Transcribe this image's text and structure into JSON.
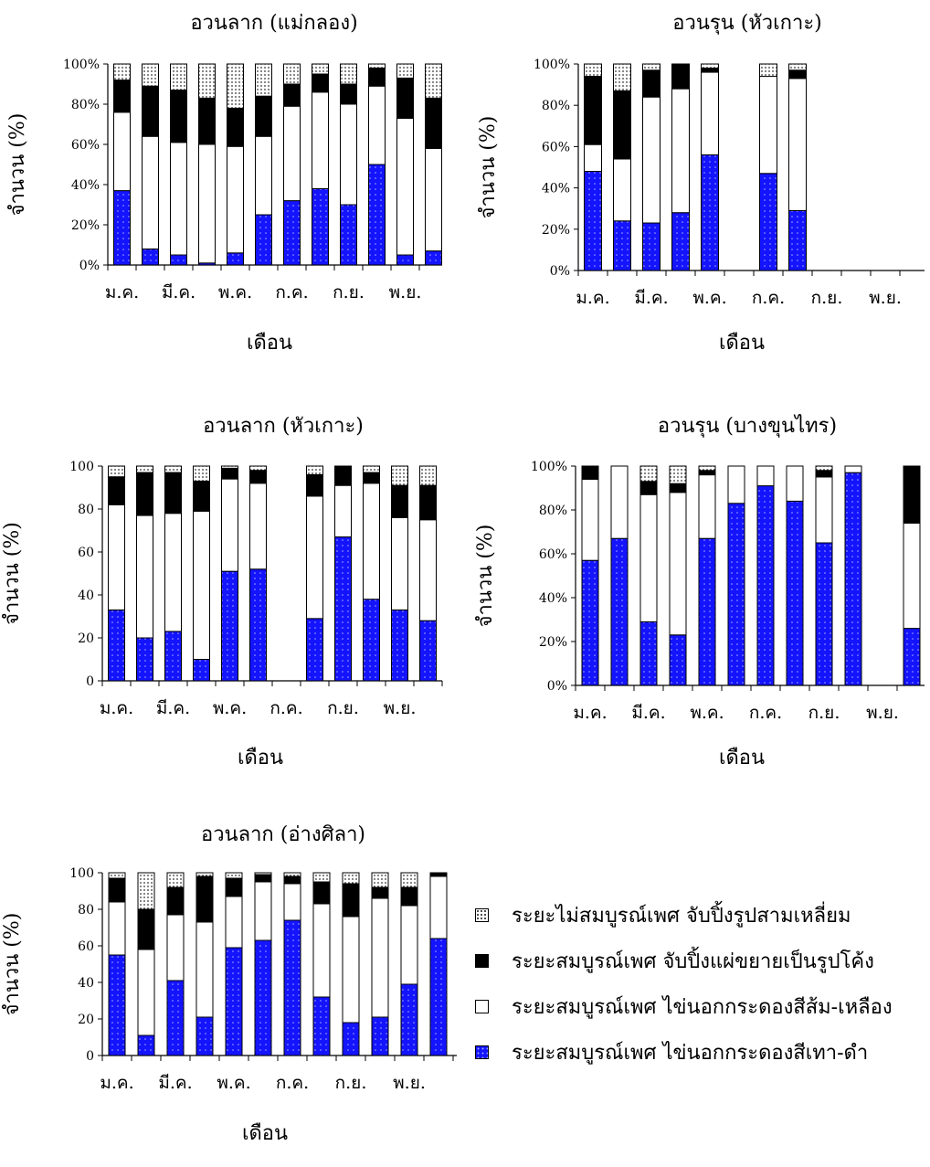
{
  "legend": {
    "items": [
      {
        "key": "immature",
        "label": "ระยะไม่สมบูรณ์เพศ จับปิ้งรูปสามเหลี่ยม"
      },
      {
        "key": "curved",
        "label": "ระยะสมบูรณ์เพศ จับปิ้งแผ่ขยายเป็นรูปโค้ง"
      },
      {
        "key": "orange",
        "label": "ระยะสมบูรณ์เพศ ไข่นอกกระดองสีส้ม-เหลือง"
      },
      {
        "key": "grayblack",
        "label": "ระยะสมบูรณ์เพศ ไข่นอกกระดองสีเทา-ดำ"
      }
    ]
  },
  "colors": {
    "grayblack": "#1414ff",
    "orange": "#ffffff",
    "curved": "#000000",
    "immature": "dotted"
  },
  "chart_data": [
    {
      "type": "bar",
      "stacked": true,
      "id": "chart1",
      "title": "อวนลาก (แม่กลอง)",
      "xlabel": "เดือน",
      "ylabel": "จำนวน (%)",
      "ylim": [
        0,
        100
      ],
      "percent_ticks": true,
      "yticks": [
        "0%",
        "20%",
        "40%",
        "60%",
        "80%",
        "100%"
      ],
      "xticks": [
        "ม.ค.",
        "มี.ค.",
        "พ.ค.",
        "ก.ค.",
        "ก.ย.",
        "พ.ย."
      ],
      "categories": [
        "ม.ค.",
        "ก.พ.",
        "มี.ค.",
        "เม.ย.",
        "พ.ค.",
        "มิ.ย.",
        "ก.ค.",
        "ส.ค.",
        "ก.ย.",
        "ต.ค.",
        "พ.ย.",
        "ธ.ค."
      ],
      "series": [
        {
          "key": "grayblack",
          "values": [
            37,
            8,
            5,
            1,
            6,
            25,
            32,
            38,
            30,
            50,
            5,
            7
          ]
        },
        {
          "key": "orange",
          "values": [
            39,
            56,
            56,
            59,
            53,
            39,
            47,
            48,
            50,
            39,
            68,
            51
          ]
        },
        {
          "key": "curved",
          "values": [
            16,
            25,
            26,
            23,
            19,
            20,
            11,
            9,
            10,
            9,
            20,
            25
          ]
        },
        {
          "key": "immature",
          "values": [
            8,
            11,
            13,
            17,
            22,
            16,
            10,
            5,
            10,
            2,
            7,
            17
          ]
        }
      ]
    },
    {
      "type": "bar",
      "stacked": true,
      "id": "chart2",
      "title": "อวนรุน (หัวเกาะ)",
      "xlabel": "เดือน",
      "ylabel": "จำนวน (%)",
      "ylim": [
        0,
        100
      ],
      "percent_ticks": true,
      "yticks": [
        "0%",
        "20%",
        "40%",
        "60%",
        "80%",
        "100%"
      ],
      "xticks": [
        "ม.ค.",
        "มี.ค.",
        "พ.ค.",
        "ก.ค.",
        "ก.ย.",
        "พ.ย."
      ],
      "categories": [
        "ม.ค.",
        "ก.พ.",
        "มี.ค.",
        "เม.ย.",
        "พ.ค.",
        "มิ.ย.",
        "ก.ค.",
        "ส.ค.",
        "ก.ย.",
        "ต.ค.",
        "พ.ย.",
        "ธ.ค."
      ],
      "series": [
        {
          "key": "grayblack",
          "values": [
            48,
            24,
            23,
            28,
            56,
            null,
            47,
            29,
            null,
            null,
            null,
            null
          ]
        },
        {
          "key": "orange",
          "values": [
            13,
            30,
            61,
            60,
            40,
            null,
            47,
            64,
            null,
            null,
            null,
            null
          ]
        },
        {
          "key": "curved",
          "values": [
            33,
            33,
            13,
            12,
            2,
            null,
            0,
            4,
            null,
            null,
            null,
            null
          ]
        },
        {
          "key": "immature",
          "values": [
            6,
            13,
            3,
            0,
            2,
            null,
            6,
            3,
            null,
            null,
            null,
            null
          ]
        }
      ]
    },
    {
      "type": "bar",
      "stacked": true,
      "id": "chart3",
      "title": "อวนลาก (หัวเกาะ)",
      "xlabel": "เดือน",
      "ylabel": "จำนวน (%)",
      "ylim": [
        0,
        100
      ],
      "percent_ticks": false,
      "yticks": [
        "0",
        "20",
        "40",
        "60",
        "80",
        "100"
      ],
      "xticks": [
        "ม.ค.",
        "มี.ค.",
        "พ.ค.",
        "ก.ค.",
        "ก.ย.",
        "พ.ย."
      ],
      "categories": [
        "ม.ค.",
        "ก.พ.",
        "มี.ค.",
        "เม.ย.",
        "พ.ค.",
        "มิ.ย.",
        "ก.ค.",
        "ส.ค.",
        "ก.ย.",
        "ต.ค.",
        "พ.ย.",
        "ธ.ค."
      ],
      "series": [
        {
          "key": "grayblack",
          "values": [
            33,
            20,
            23,
            10,
            51,
            52,
            null,
            29,
            67,
            38,
            33,
            28
          ]
        },
        {
          "key": "orange",
          "values": [
            49,
            57,
            55,
            69,
            43,
            40,
            null,
            57,
            24,
            54,
            43,
            47
          ]
        },
        {
          "key": "curved",
          "values": [
            13,
            20,
            19,
            14,
            5,
            6,
            null,
            10,
            9,
            5,
            15,
            16
          ]
        },
        {
          "key": "immature",
          "values": [
            5,
            3,
            3,
            7,
            1,
            2,
            null,
            4,
            0,
            3,
            9,
            9
          ]
        }
      ]
    },
    {
      "type": "bar",
      "stacked": true,
      "id": "chart4",
      "title": "อวนรุน (บางขุนไทร)",
      "xlabel": "เดือน",
      "ylabel": "จำนวน (%)",
      "ylim": [
        0,
        100
      ],
      "percent_ticks": true,
      "yticks": [
        "0%",
        "20%",
        "40%",
        "60%",
        "80%",
        "100%"
      ],
      "xticks": [
        "ม.ค.",
        "มี.ค.",
        "พ.ค.",
        "ก.ค.",
        "ก.ย.",
        "พ.ย."
      ],
      "categories": [
        "ม.ค.",
        "ก.พ.",
        "มี.ค.",
        "เม.ย.",
        "พ.ค.",
        "มิ.ย.",
        "ก.ค.",
        "ส.ค.",
        "ก.ย.",
        "ต.ค.",
        "พ.ย.",
        "ธ.ค."
      ],
      "series": [
        {
          "key": "grayblack",
          "values": [
            57,
            67,
            29,
            23,
            67,
            83,
            91,
            84,
            65,
            97,
            null,
            26
          ]
        },
        {
          "key": "orange",
          "values": [
            37,
            33,
            58,
            65,
            29,
            17,
            9,
            16,
            30,
            3,
            null,
            48
          ]
        },
        {
          "key": "curved",
          "values": [
            6,
            0,
            6,
            4,
            2,
            0,
            0,
            0,
            3,
            0,
            null,
            26
          ]
        },
        {
          "key": "immature",
          "values": [
            0,
            0,
            7,
            8,
            2,
            0,
            0,
            0,
            2,
            0,
            null,
            0
          ]
        }
      ]
    },
    {
      "type": "bar",
      "stacked": true,
      "id": "chart5",
      "title": "อวนลาก (อ่างศิลา)",
      "xlabel": "เดือน",
      "ylabel": "จำนวน (%)",
      "ylim": [
        0,
        100
      ],
      "percent_ticks": false,
      "yticks": [
        "0",
        "20",
        "40",
        "60",
        "80",
        "100"
      ],
      "xticks": [
        "ม.ค.",
        "มี.ค.",
        "พ.ค.",
        "ก.ค.",
        "ก.ย.",
        "พ.ย."
      ],
      "categories": [
        "ม.ค.",
        "ก.พ.",
        "มี.ค.",
        "เม.ย.",
        "พ.ค.",
        "มิ.ย.",
        "ก.ค.",
        "ส.ค.",
        "ก.ย.",
        "ต.ค.",
        "พ.ย.",
        "ธ.ค."
      ],
      "series": [
        {
          "key": "grayblack",
          "values": [
            55,
            11,
            41,
            21,
            59,
            63,
            74,
            32,
            18,
            21,
            39,
            64
          ]
        },
        {
          "key": "orange",
          "values": [
            29,
            47,
            36,
            52,
            28,
            32,
            20,
            51,
            58,
            65,
            43,
            34
          ]
        },
        {
          "key": "curved",
          "values": [
            13,
            22,
            15,
            25,
            10,
            4,
            4,
            12,
            18,
            6,
            10,
            2
          ]
        },
        {
          "key": "immature",
          "values": [
            3,
            20,
            8,
            2,
            3,
            1,
            2,
            5,
            6,
            8,
            8,
            0
          ]
        }
      ]
    }
  ]
}
